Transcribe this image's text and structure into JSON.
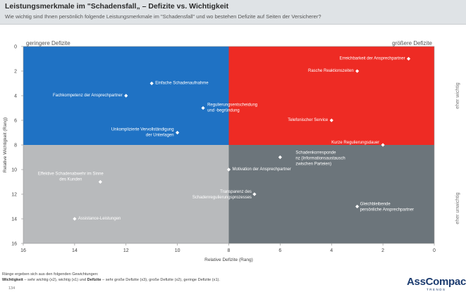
{
  "header": {
    "title": "Leistungsmerkmale im \"Schadensfall„ – Defizite vs. Wichtigkeit",
    "subtitle": "Wie wichtig sind Ihnen persönlich folgende Leistungsmerkmale im \"Schadensfall\" und wo bestehen Defizite auf Seiten der Versicherer?"
  },
  "chart_data": {
    "type": "scatter",
    "xlabel": "Relative Defizite (Rang)",
    "ylabel": "Relative Wichtigkeit (Rang)",
    "xlim": [
      16,
      0
    ],
    "ylim": [
      0,
      16
    ],
    "x_ticks": [
      "16",
      "14",
      "12",
      "10",
      "8",
      "6",
      "4",
      "2",
      "0"
    ],
    "y_ticks": [
      "0",
      "2",
      "4",
      "6",
      "8",
      "10",
      "12",
      "14",
      "16"
    ],
    "quadrant_colors": {
      "top_left": "#1f72c4",
      "top_right": "#ee2b24",
      "bottom_left": "#b8babc",
      "bottom_right": "#6c757b"
    },
    "corner_labels": {
      "top_left": "geringere Defizite",
      "top_right": "größere Defizite",
      "right_top": "eher wichtig",
      "right_bottom": "eher unwichtig"
    },
    "points": [
      {
        "label": "Erreichbarkeit der Ansprechpartner",
        "x": 1,
        "y": 1
      },
      {
        "label": "Rasche Reaktionszeiten",
        "x": 3,
        "y": 2
      },
      {
        "label": "Einfache Schadenaufnahme",
        "x": 11,
        "y": 3
      },
      {
        "label": "Fachkompetenz der Ansprechpartner",
        "x": 12,
        "y": 4
      },
      {
        "label": "Regulierungsentscheidung und -begründung",
        "x": 9,
        "y": 5
      },
      {
        "label": "Telefonischer Service",
        "x": 4,
        "y": 6
      },
      {
        "label": "Unkomplizierte Vervollständigung der Unterlagen",
        "x": 10,
        "y": 7
      },
      {
        "label": "Kurze Regulierungsdauer",
        "x": 2,
        "y": 8
      },
      {
        "label": "Schadenkorrespondenz (Informationsaustausch zwischen Parteien)",
        "x": 6,
        "y": 9
      },
      {
        "label": "Motivation der Ansprechpartner",
        "x": 8,
        "y": 10
      },
      {
        "label": "Effektive Schadenabwehr im Sinne des Kunden",
        "x": 13,
        "y": 11
      },
      {
        "label": "Transparenz des Schadenregulierungsprozesses",
        "x": 7,
        "y": 12
      },
      {
        "label": "Gleichbleibende persönliche Ansprechpartner",
        "x": 3,
        "y": 13
      },
      {
        "label": "Assistance-Leistungen",
        "x": 14,
        "y": 14
      }
    ]
  },
  "footer": {
    "line1": "Ränge ergeben sich aus den folgenden Gewichtungen:",
    "line2_bold1": "Wichtigkeit",
    "line2_mid": " – sehr wichtig (x2), wichtig (x1) und ",
    "line2_bold2": "Defizite",
    "line2_end": " – sehr große Defizite (x3), große Defizite (x2), geringe Defizite (x1).",
    "page_number": "134"
  },
  "logo": {
    "name": "AssCompact",
    "sub": "TRENDS"
  }
}
